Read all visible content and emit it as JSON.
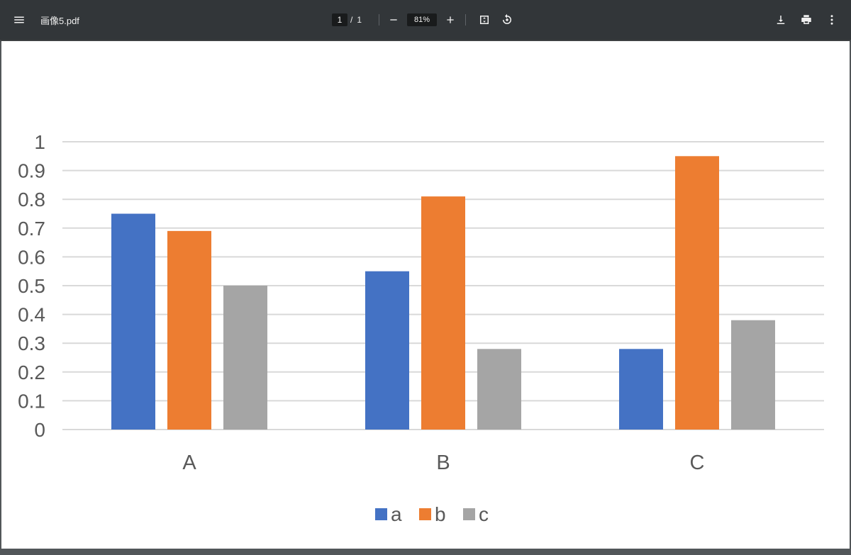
{
  "toolbar": {
    "file_name": "画像5.pdf",
    "page_current": "1",
    "page_separator": "/",
    "page_total": "1",
    "zoom": "81%"
  },
  "icons": {
    "menu": "menu-icon",
    "zoom_out": "minus-icon",
    "zoom_in": "plus-icon",
    "fit": "fit-to-page-icon",
    "rotate": "rotate-icon",
    "download": "download-icon",
    "print": "print-icon",
    "more": "more-vert-icon"
  },
  "chart_data": {
    "type": "bar",
    "categories": [
      "A",
      "B",
      "C"
    ],
    "series": [
      {
        "name": "a",
        "color": "#4472C4",
        "values": [
          0.75,
          0.55,
          0.28
        ]
      },
      {
        "name": "b",
        "color": "#ED7D31",
        "values": [
          0.69,
          0.81,
          0.95
        ]
      },
      {
        "name": "c",
        "color": "#A5A5A5",
        "values": [
          0.5,
          0.28,
          0.38
        ]
      }
    ],
    "yticks": [
      "0",
      "0.1",
      "0.2",
      "0.3",
      "0.4",
      "0.5",
      "0.6",
      "0.7",
      "0.8",
      "0.9",
      "1"
    ],
    "ylim": [
      0,
      1
    ],
    "grid": true,
    "legend": "bottom"
  }
}
